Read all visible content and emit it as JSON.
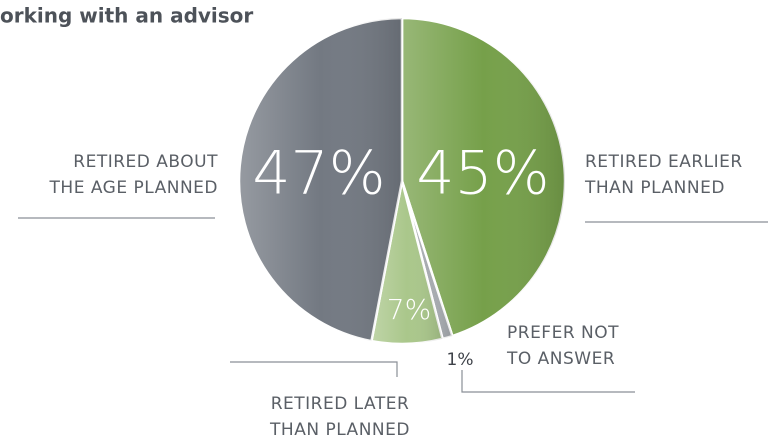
{
  "chart_data": {
    "type": "pie",
    "title": "orking with an advisor",
    "categories": [
      [
        "RETIRED EARLIER",
        "THAN PLANNED"
      ],
      [
        "PREFER NOT",
        "TO ANSWER"
      ],
      [
        "RETIRED LATER",
        "THAN PLANNED"
      ],
      [
        "RETIRED ABOUT",
        "THE AGE PLANNED"
      ]
    ],
    "values": [
      45,
      1,
      7,
      47
    ],
    "value_labels": [
      "45%",
      "1%",
      "7%",
      "47%"
    ],
    "colors": [
      "#76a04a",
      "#a7abb0",
      "#aac78b",
      "#737982"
    ]
  }
}
